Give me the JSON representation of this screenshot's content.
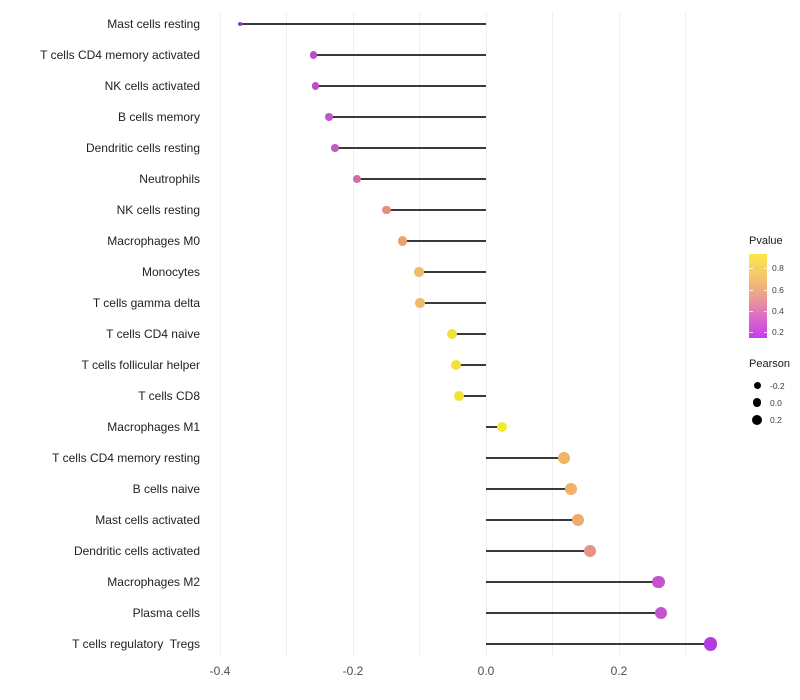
{
  "chart_data": {
    "type": "scatter",
    "subtype": "lollipop",
    "title": "",
    "xlabel": "",
    "ylabel": "",
    "xlim": [
      -0.45,
      0.38
    ],
    "grid": "vertical-only",
    "grid_color": "#efefef",
    "stem_color": "#3a3a3a",
    "background": "#ffffff",
    "x_axis": {
      "tick_values": [
        -0.4,
        -0.2,
        0.0,
        0.2
      ],
      "tick_labels": [
        "-0.4",
        "-0.2",
        "0.0",
        "0.2"
      ],
      "gridline_values": [
        -0.4,
        -0.3,
        -0.2,
        -0.1,
        0.0,
        0.1,
        0.2,
        0.3
      ]
    },
    "rows": [
      {
        "label": "Mast cells resting",
        "pearson": -0.37,
        "pvalue_approx": 0.08,
        "color": "#9334d6"
      },
      {
        "label": "T cells CD4 memory activated",
        "pearson": -0.259,
        "pvalue_approx": 0.25,
        "color": "#bc4ec6"
      },
      {
        "label": "NK cells activated",
        "pearson": -0.256,
        "pvalue_approx": 0.25,
        "color": "#bc4ec6"
      },
      {
        "label": "B cells memory",
        "pearson": -0.236,
        "pvalue_approx": 0.28,
        "color": "#c156c6"
      },
      {
        "label": "Dendritic cells resting",
        "pearson": -0.227,
        "pvalue_approx": 0.3,
        "color": "#c25bc2"
      },
      {
        "label": "Neutrophils",
        "pearson": -0.194,
        "pvalue_approx": 0.4,
        "color": "#cd6fa6"
      },
      {
        "label": "NK cells resting",
        "pearson": -0.15,
        "pvalue_approx": 0.5,
        "color": "#e2907e"
      },
      {
        "label": "Macrophages M0",
        "pearson": -0.125,
        "pvalue_approx": 0.55,
        "color": "#eca370"
      },
      {
        "label": "Monocytes",
        "pearson": -0.101,
        "pvalue_approx": 0.62,
        "color": "#f0bc69"
      },
      {
        "label": "T cells gamma delta",
        "pearson": -0.099,
        "pvalue_approx": 0.62,
        "color": "#f0bc69"
      },
      {
        "label": "T cells CD4 naive",
        "pearson": -0.051,
        "pvalue_approx": 0.82,
        "color": "#f1e13b"
      },
      {
        "label": "T cells follicular helper",
        "pearson": -0.045,
        "pvalue_approx": 0.83,
        "color": "#f1e139"
      },
      {
        "label": "T cells CD8",
        "pearson": -0.041,
        "pvalue_approx": 0.85,
        "color": "#f2e436"
      },
      {
        "label": "Macrophages M1",
        "pearson": 0.024,
        "pvalue_approx": 0.9,
        "color": "#f4ea33"
      },
      {
        "label": "T cells CD4 memory resting",
        "pearson": 0.117,
        "pvalue_approx": 0.6,
        "color": "#f0b56a"
      },
      {
        "label": "B cells naive",
        "pearson": 0.128,
        "pvalue_approx": 0.6,
        "color": "#f0b268"
      },
      {
        "label": "Mast cells activated",
        "pearson": 0.138,
        "pvalue_approx": 0.57,
        "color": "#efac72"
      },
      {
        "label": "Dendritic cells activated",
        "pearson": 0.156,
        "pvalue_approx": 0.5,
        "color": "#e79288"
      },
      {
        "label": "Macrophages M2",
        "pearson": 0.259,
        "pvalue_approx": 0.28,
        "color": "#c653ce"
      },
      {
        "label": "Plasma cells",
        "pearson": 0.263,
        "pvalue_approx": 0.28,
        "color": "#c653ce"
      },
      {
        "label": "T cells regulatory  Tregs",
        "pearson": 0.338,
        "pvalue_approx": 0.15,
        "color": "#b43be1"
      }
    ],
    "legend_pvalue": {
      "title": "Pvalue",
      "tick_labels": [
        "0.8",
        "0.6",
        "0.4",
        "0.2"
      ],
      "tick_values": [
        0.8,
        0.6,
        0.4,
        0.2
      ],
      "bar_domain_top": 0.935,
      "bar_domain_bottom": 0.145,
      "gradient_stops": [
        "#fce64b",
        "#f5c967",
        "#ec9f8e",
        "#dc6cc8",
        "#c63bef"
      ]
    },
    "legend_pearson": {
      "title": "Pearson",
      "items": [
        {
          "label": "-0.2",
          "value": -0.2,
          "diameter": 7
        },
        {
          "label": "0.0",
          "value": 0.0,
          "diameter": 8.5
        },
        {
          "label": "0.2",
          "value": 0.2,
          "diameter": 10
        }
      ]
    }
  }
}
